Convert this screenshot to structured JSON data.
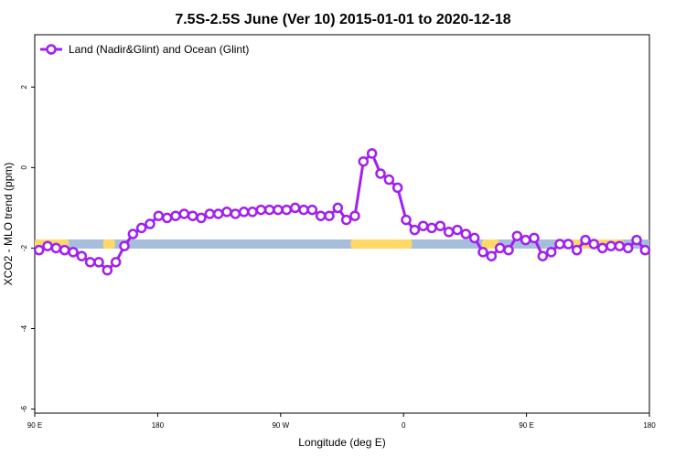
{
  "chart_data": {
    "type": "line",
    "title": "7.5S-2.5S June (Ver 10)   2015-01-01 to 2020-12-18",
    "xlabel": "Longitude (deg E)",
    "ylabel": "XCO2 - MLO trend (ppm)",
    "x_tick_labels": [
      "90 E",
      "180",
      "90 W",
      "0",
      "90 E",
      "180"
    ],
    "y_tick_labels": [
      "2",
      "0",
      "-2",
      "-4",
      "-6"
    ],
    "xlim": [
      90,
      450
    ],
    "ylim": [
      -6.1,
      3.3
    ],
    "grid": false,
    "legend_position": "top-left",
    "colors": {
      "series": "#A020F0",
      "ocean": "#A6BDDB",
      "land": "#FFD966"
    },
    "series": [
      {
        "name": "Land (Nadir&Glint) and Ocean (Glint)",
        "x": [
          92.5,
          97.5,
          102.5,
          107.5,
          112.5,
          117.5,
          122.5,
          127.5,
          132.5,
          137.5,
          142.5,
          147.5,
          152.5,
          157.5,
          162.5,
          167.5,
          172.5,
          177.5,
          182.5,
          187.5,
          192.5,
          197.5,
          202.5,
          207.5,
          212.5,
          217.5,
          222.5,
          227.5,
          232.5,
          237.5,
          242.5,
          247.5,
          252.5,
          257.5,
          262.5,
          267.5,
          272.5,
          277.5,
          282.5,
          287.5,
          292.5,
          297.5,
          302.5,
          307.5,
          312.5,
          317.5,
          322.5,
          327.5,
          332.5,
          337.5,
          342.5,
          347.5,
          352.5,
          357.5,
          362.5,
          367.5,
          372.5,
          377.5,
          382.5,
          387.5,
          392.5,
          397.5,
          402.5,
          407.5,
          412.5,
          417.5,
          422.5,
          427.5,
          432.5,
          437.5,
          442.5,
          447.5
        ],
        "y": [
          -2.05,
          -1.95,
          -2.0,
          -2.05,
          -2.1,
          -2.2,
          -2.35,
          -2.35,
          -2.55,
          -2.35,
          -1.95,
          -1.65,
          -1.5,
          -1.4,
          -1.2,
          -1.25,
          -1.2,
          -1.15,
          -1.2,
          -1.25,
          -1.15,
          -1.15,
          -1.1,
          -1.15,
          -1.1,
          -1.1,
          -1.05,
          -1.05,
          -1.05,
          -1.05,
          -1.0,
          -1.05,
          -1.05,
          -1.2,
          -1.2,
          -1.0,
          -1.3,
          -1.2,
          0.15,
          0.35,
          -0.15,
          -0.3,
          -0.5,
          -1.3,
          -1.55,
          -1.45,
          -1.5,
          -1.45,
          -1.6,
          -1.55,
          -1.65,
          -1.75,
          -2.1,
          -2.2,
          -2.0,
          -2.05,
          -1.7,
          -1.8,
          -1.75,
          -2.2,
          -2.1,
          -1.9,
          -1.9,
          -2.05,
          -1.8,
          -1.9,
          -2.0,
          -1.95,
          -1.95,
          -2.0,
          -1.8,
          -2.05
        ]
      }
    ]
  }
}
